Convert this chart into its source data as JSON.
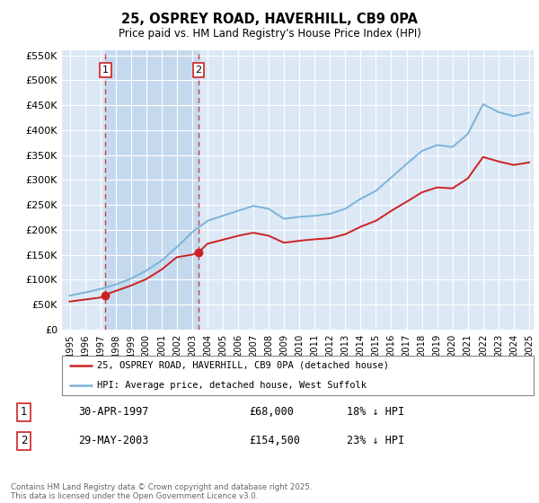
{
  "title": "25, OSPREY ROAD, HAVERHILL, CB9 0PA",
  "subtitle": "Price paid vs. HM Land Registry's House Price Index (HPI)",
  "background_color": "#ffffff",
  "plot_bg_color": "#dce8f5",
  "grid_color": "#ffffff",
  "hpi_color": "#7ab4d8",
  "price_color": "#cc2222",
  "shade_color": "#c5d9ee",
  "legend_line1": "25, OSPREY ROAD, HAVERHILL, CB9 0PA (detached house)",
  "legend_line2": "HPI: Average price, detached house, West Suffolk",
  "footnote": "Contains HM Land Registry data © Crown copyright and database right 2025.\nThis data is licensed under the Open Government Licence v3.0.",
  "ylim": [
    0,
    560000
  ],
  "yticks": [
    0,
    50000,
    100000,
    150000,
    200000,
    250000,
    300000,
    350000,
    400000,
    450000,
    500000,
    550000
  ],
  "start_year": 1995,
  "end_year": 2025,
  "hpi_knots": [
    1995,
    1996,
    1997,
    1998,
    1999,
    2000,
    2001,
    2002,
    2003,
    2004,
    2005,
    2006,
    2007,
    2008,
    2009,
    2010,
    2011,
    2012,
    2013,
    2014,
    2015,
    2016,
    2017,
    2018,
    2019,
    2020,
    2021,
    2022,
    2023,
    2024,
    2025
  ],
  "hpi_vals": [
    68000,
    74000,
    81000,
    90000,
    102000,
    118000,
    138000,
    165000,
    195000,
    218000,
    228000,
    238000,
    248000,
    242000,
    222000,
    226000,
    228000,
    232000,
    242000,
    262000,
    278000,
    305000,
    332000,
    358000,
    370000,
    366000,
    392000,
    452000,
    436000,
    428000,
    435000
  ],
  "price_knots": [
    1995.0,
    1996.0,
    1997.0,
    1997.25,
    1997.35,
    1998.0,
    1999.0,
    2000.0,
    2001.0,
    2002.0,
    2003.0,
    2003.42,
    2004.0,
    2005.0,
    2006.0,
    2007.0,
    2008.0,
    2009.0,
    2010.0,
    2011.0,
    2012.0,
    2013.0,
    2014.0,
    2015.0,
    2016.0,
    2017.0,
    2018.0,
    2019.0,
    2020.0,
    2021.0,
    2022.0,
    2023.0,
    2024.0,
    2025.0
  ],
  "price_vals": [
    56000,
    60000,
    64000,
    68000,
    70000,
    77000,
    88000,
    101000,
    120000,
    145000,
    150000,
    154500,
    172000,
    180000,
    188000,
    194000,
    188000,
    174000,
    178000,
    181000,
    183000,
    191000,
    206000,
    218000,
    238000,
    256000,
    275000,
    285000,
    283000,
    303000,
    346000,
    337000,
    330000,
    335000
  ],
  "t1": 1997.333,
  "t2": 2003.417,
  "p1": 68000,
  "p2": 154500
}
